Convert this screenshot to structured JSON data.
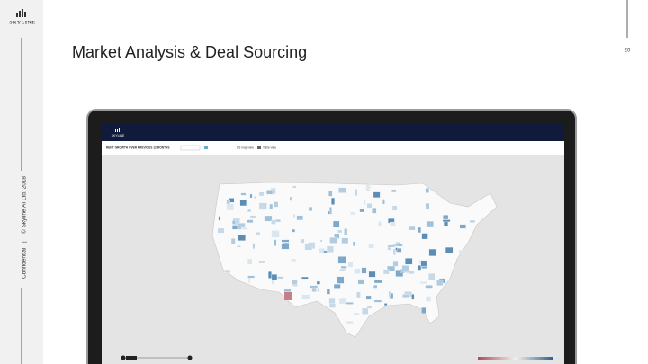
{
  "sidebar": {
    "logo": "SKYLINE",
    "confidential": "Confidential",
    "separator": "|",
    "copyright": "© Skyline AI Ltd. 2018"
  },
  "header": {
    "title": "Market Analysis & Deal Sourcing",
    "page_number": "20"
  },
  "screen": {
    "logo": "SKYLINE",
    "toolbar_title": "RENT GROWTH OVER PREVIOUS 12 MONTHS",
    "map_view": "US map view",
    "table_view": "Table view"
  }
}
